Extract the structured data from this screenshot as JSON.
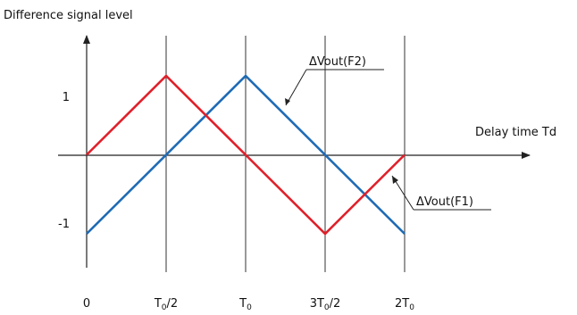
{
  "y_axis_label": "Difference signal level",
  "x_axis_label": "Delay time Td",
  "y_ticks": [
    "1",
    "-1"
  ],
  "x_ticks": [
    {
      "main": "0",
      "sub": "",
      "tail": ""
    },
    {
      "main": "T",
      "sub": "0",
      "tail": "/2"
    },
    {
      "main": "T",
      "sub": "0",
      "tail": ""
    },
    {
      "main": "3T",
      "sub": "0",
      "tail": "/2"
    },
    {
      "main": "2T",
      "sub": "0",
      "tail": ""
    }
  ],
  "callouts": {
    "f1": {
      "text": "ΔVout(F1)"
    },
    "f2": {
      "text": "ΔVout(F2)"
    }
  },
  "colors": {
    "f1": "#e0202a",
    "f2": "#1f6bb5",
    "axis": "#222222",
    "grid": "#333333"
  },
  "chart_data": {
    "type": "line",
    "x_unit": "T0",
    "xlim": [
      0,
      2
    ],
    "ylim": [
      -1,
      1
    ],
    "series": [
      {
        "name": "ΔVout(F1)",
        "x": [
          0,
          0.5,
          1,
          1.5,
          2
        ],
        "y": [
          0,
          1,
          0,
          -1,
          0
        ]
      },
      {
        "name": "ΔVout(F2)",
        "x": [
          0,
          1,
          2
        ],
        "y": [
          -1,
          1,
          -1
        ]
      }
    ]
  }
}
